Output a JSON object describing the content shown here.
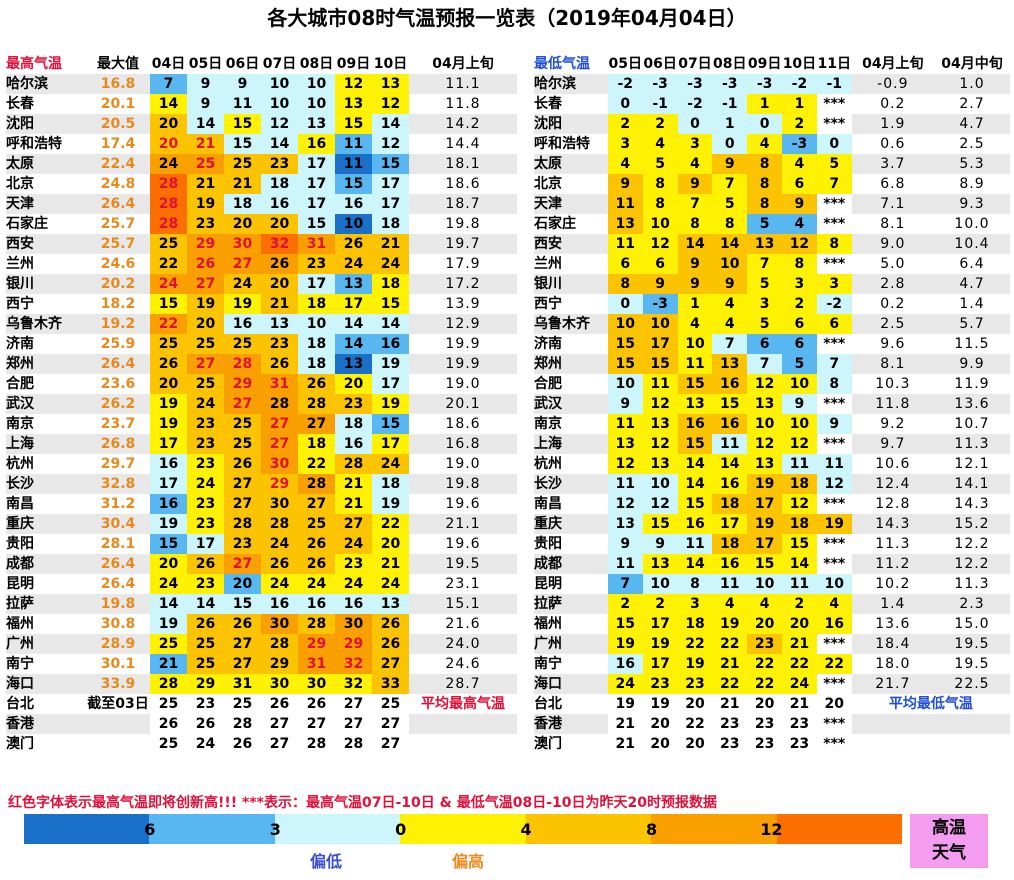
{
  "title": "各大城市08时气温预报一览表（2019年04月04日）",
  "left": {
    "headers": [
      "最高气温",
      "最大值",
      "04日",
      "05日",
      "06日",
      "07日",
      "08日",
      "09日",
      "10日",
      "04月上旬"
    ],
    "rows": [
      {
        "city": "哈尔滨",
        "max": "16.8",
        "vals": [
          "7",
          "9",
          "9",
          "10",
          "10",
          "12",
          "13"
        ],
        "avg": "11.1"
      },
      {
        "city": "长春",
        "max": "20.1",
        "vals": [
          "14",
          "9",
          "11",
          "10",
          "10",
          "13",
          "12"
        ],
        "avg": "11.8"
      },
      {
        "city": "沈阳",
        "max": "20.5",
        "vals": [
          "20",
          "14",
          "15",
          "12",
          "13",
          "15",
          "14"
        ],
        "avg": "14.2"
      },
      {
        "city": "呼和浩特",
        "max": "17.4",
        "vals": [
          "20",
          "21",
          "15",
          "14",
          "16",
          "11",
          "12"
        ],
        "avg": "14.4"
      },
      {
        "city": "太原",
        "max": "22.4",
        "vals": [
          "24",
          "25",
          "25",
          "23",
          "17",
          "11",
          "15"
        ],
        "avg": "18.1"
      },
      {
        "city": "北京",
        "max": "24.8",
        "vals": [
          "28",
          "21",
          "21",
          "18",
          "17",
          "15",
          "17"
        ],
        "avg": "18.6"
      },
      {
        "city": "天津",
        "max": "26.4",
        "vals": [
          "28",
          "19",
          "18",
          "16",
          "17",
          "16",
          "17"
        ],
        "avg": "18.7"
      },
      {
        "city": "石家庄",
        "max": "25.7",
        "vals": [
          "28",
          "23",
          "20",
          "20",
          "15",
          "10",
          "18"
        ],
        "avg": "19.8"
      },
      {
        "city": "西安",
        "max": "25.7",
        "vals": [
          "25",
          "29",
          "30",
          "32",
          "31",
          "26",
          "21"
        ],
        "avg": "19.7"
      },
      {
        "city": "兰州",
        "max": "24.6",
        "vals": [
          "22",
          "26",
          "27",
          "26",
          "23",
          "24",
          "24"
        ],
        "avg": "17.9"
      },
      {
        "city": "银川",
        "max": "20.2",
        "vals": [
          "24",
          "27",
          "24",
          "20",
          "17",
          "13",
          "18"
        ],
        "avg": "17.2"
      },
      {
        "city": "西宁",
        "max": "18.2",
        "vals": [
          "15",
          "19",
          "19",
          "21",
          "18",
          "17",
          "15"
        ],
        "avg": "13.9"
      },
      {
        "city": "乌鲁木齐",
        "max": "19.2",
        "vals": [
          "22",
          "20",
          "16",
          "13",
          "10",
          "14",
          "14"
        ],
        "avg": "12.9"
      },
      {
        "city": "济南",
        "max": "25.9",
        "vals": [
          "25",
          "25",
          "25",
          "23",
          "18",
          "14",
          "16"
        ],
        "avg": "19.9"
      },
      {
        "city": "郑州",
        "max": "26.4",
        "vals": [
          "26",
          "27",
          "28",
          "26",
          "18",
          "13",
          "19"
        ],
        "avg": "19.9"
      },
      {
        "city": "合肥",
        "max": "23.6",
        "vals": [
          "20",
          "25",
          "29",
          "31",
          "26",
          "20",
          "17"
        ],
        "avg": "19.0"
      },
      {
        "city": "武汉",
        "max": "26.2",
        "vals": [
          "19",
          "24",
          "27",
          "28",
          "28",
          "23",
          "19"
        ],
        "avg": "20.1"
      },
      {
        "city": "南京",
        "max": "23.7",
        "vals": [
          "19",
          "23",
          "25",
          "27",
          "27",
          "18",
          "15"
        ],
        "avg": "18.6"
      },
      {
        "city": "上海",
        "max": "26.8",
        "vals": [
          "17",
          "23",
          "25",
          "27",
          "18",
          "16",
          "17"
        ],
        "avg": "16.8"
      },
      {
        "city": "杭州",
        "max": "29.7",
        "vals": [
          "16",
          "23",
          "26",
          "30",
          "22",
          "28",
          "24"
        ],
        "avg": "19.0"
      },
      {
        "city": "长沙",
        "max": "32.8",
        "vals": [
          "17",
          "24",
          "27",
          "29",
          "28",
          "21",
          "18"
        ],
        "avg": "19.8"
      },
      {
        "city": "南昌",
        "max": "31.2",
        "vals": [
          "16",
          "23",
          "27",
          "30",
          "27",
          "21",
          "19"
        ],
        "avg": "19.6"
      },
      {
        "city": "重庆",
        "max": "30.4",
        "vals": [
          "19",
          "23",
          "28",
          "28",
          "25",
          "27",
          "22"
        ],
        "avg": "21.1"
      },
      {
        "city": "贵阳",
        "max": "28.1",
        "vals": [
          "15",
          "17",
          "23",
          "24",
          "26",
          "24",
          "20"
        ],
        "avg": "19.6"
      },
      {
        "city": "成都",
        "max": "26.4",
        "vals": [
          "20",
          "26",
          "27",
          "26",
          "26",
          "23",
          "21"
        ],
        "avg": "19.5"
      },
      {
        "city": "昆明",
        "max": "26.4",
        "vals": [
          "24",
          "23",
          "20",
          "24",
          "24",
          "24",
          "24"
        ],
        "avg": "23.1"
      },
      {
        "city": "拉萨",
        "max": "19.8",
        "vals": [
          "14",
          "14",
          "15",
          "16",
          "16",
          "16",
          "13"
        ],
        "avg": "15.1"
      },
      {
        "city": "福州",
        "max": "30.8",
        "vals": [
          "19",
          "26",
          "26",
          "30",
          "28",
          "30",
          "26"
        ],
        "avg": "21.6"
      },
      {
        "city": "广州",
        "max": "28.9",
        "vals": [
          "25",
          "25",
          "27",
          "28",
          "29",
          "29",
          "26"
        ],
        "avg": "24.0"
      },
      {
        "city": "南宁",
        "max": "30.1",
        "vals": [
          "21",
          "25",
          "27",
          "29",
          "31",
          "32",
          "27"
        ],
        "avg": "24.6"
      },
      {
        "city": "海口",
        "max": "33.9",
        "vals": [
          "28",
          "29",
          "31",
          "30",
          "30",
          "32",
          "33"
        ],
        "avg": "28.7"
      },
      {
        "city": "台北",
        "max": "截至03日",
        "vals": [
          "25",
          "23",
          "25",
          "26",
          "26",
          "27",
          "25"
        ],
        "avg": ""
      },
      {
        "city": "香港",
        "max": "",
        "vals": [
          "26",
          "26",
          "28",
          "27",
          "27",
          "27",
          "27"
        ],
        "avg": ""
      },
      {
        "city": "澳门",
        "max": "",
        "vals": [
          "25",
          "24",
          "26",
          "27",
          "28",
          "28",
          "27"
        ],
        "avg": ""
      }
    ],
    "note": "平均最高气温"
  },
  "right": {
    "headers": [
      "最低气温",
      "05日",
      "06日",
      "07日",
      "08日",
      "09日",
      "10日",
      "11日",
      "04月上旬",
      "04月中旬"
    ],
    "rows": [
      {
        "city": "哈尔滨",
        "vals": [
          "-2",
          "-3",
          "-3",
          "-3",
          "-3",
          "-2",
          "-1"
        ],
        "p1": "-0.9",
        "p2": "1.0"
      },
      {
        "city": "长春",
        "vals": [
          "0",
          "-1",
          "-2",
          "-1",
          "1",
          "1",
          "***"
        ],
        "p1": "0.2",
        "p2": "2.7"
      },
      {
        "city": "沈阳",
        "vals": [
          "2",
          "2",
          "0",
          "1",
          "0",
          "2",
          "***"
        ],
        "p1": "1.9",
        "p2": "4.7"
      },
      {
        "city": "呼和浩特",
        "vals": [
          "3",
          "4",
          "3",
          "0",
          "4",
          "-3",
          "0"
        ],
        "p1": "0.6",
        "p2": "2.5"
      },
      {
        "city": "太原",
        "vals": [
          "4",
          "5",
          "4",
          "9",
          "8",
          "4",
          "5"
        ],
        "p1": "3.7",
        "p2": "5.3"
      },
      {
        "city": "北京",
        "vals": [
          "9",
          "8",
          "9",
          "7",
          "8",
          "6",
          "7"
        ],
        "p1": "6.8",
        "p2": "8.9"
      },
      {
        "city": "天津",
        "vals": [
          "11",
          "8",
          "7",
          "5",
          "8",
          "9",
          "***"
        ],
        "p1": "7.1",
        "p2": "9.3"
      },
      {
        "city": "石家庄",
        "vals": [
          "13",
          "10",
          "8",
          "8",
          "5",
          "4",
          "***"
        ],
        "p1": "8.1",
        "p2": "10.0"
      },
      {
        "city": "西安",
        "vals": [
          "11",
          "12",
          "14",
          "14",
          "13",
          "12",
          "8"
        ],
        "p1": "9.0",
        "p2": "10.4"
      },
      {
        "city": "兰州",
        "vals": [
          "6",
          "6",
          "9",
          "10",
          "7",
          "8",
          "***"
        ],
        "p1": "5.0",
        "p2": "6.4"
      },
      {
        "city": "银川",
        "vals": [
          "8",
          "9",
          "9",
          "9",
          "5",
          "3",
          "3"
        ],
        "p1": "2.8",
        "p2": "4.7"
      },
      {
        "city": "西宁",
        "vals": [
          "0",
          "-3",
          "1",
          "4",
          "3",
          "2",
          "-2"
        ],
        "p1": "0.2",
        "p2": "1.4"
      },
      {
        "city": "乌鲁木齐",
        "vals": [
          "10",
          "10",
          "4",
          "4",
          "5",
          "6",
          "6"
        ],
        "p1": "2.5",
        "p2": "5.7"
      },
      {
        "city": "济南",
        "vals": [
          "15",
          "17",
          "10",
          "7",
          "6",
          "6",
          "***"
        ],
        "p1": "9.6",
        "p2": "11.5"
      },
      {
        "city": "郑州",
        "vals": [
          "15",
          "15",
          "11",
          "13",
          "7",
          "5",
          "7"
        ],
        "p1": "8.1",
        "p2": "9.9"
      },
      {
        "city": "合肥",
        "vals": [
          "10",
          "11",
          "15",
          "16",
          "12",
          "10",
          "8"
        ],
        "p1": "10.3",
        "p2": "11.9"
      },
      {
        "city": "武汉",
        "vals": [
          "9",
          "12",
          "13",
          "15",
          "13",
          "9",
          "***"
        ],
        "p1": "11.8",
        "p2": "13.6"
      },
      {
        "city": "南京",
        "vals": [
          "11",
          "13",
          "16",
          "16",
          "10",
          "10",
          "9"
        ],
        "p1": "9.2",
        "p2": "10.7"
      },
      {
        "city": "上海",
        "vals": [
          "13",
          "12",
          "15",
          "11",
          "12",
          "12",
          "***"
        ],
        "p1": "9.7",
        "p2": "11.3"
      },
      {
        "city": "杭州",
        "vals": [
          "12",
          "13",
          "14",
          "14",
          "13",
          "11",
          "11"
        ],
        "p1": "10.6",
        "p2": "12.1"
      },
      {
        "city": "长沙",
        "vals": [
          "11",
          "10",
          "14",
          "16",
          "19",
          "18",
          "12"
        ],
        "p1": "12.4",
        "p2": "14.1"
      },
      {
        "city": "南昌",
        "vals": [
          "12",
          "12",
          "15",
          "18",
          "17",
          "12",
          "***"
        ],
        "p1": "12.8",
        "p2": "14.3"
      },
      {
        "city": "重庆",
        "vals": [
          "13",
          "15",
          "16",
          "17",
          "19",
          "18",
          "19"
        ],
        "p1": "14.3",
        "p2": "15.2"
      },
      {
        "city": "贵阳",
        "vals": [
          "9",
          "9",
          "11",
          "18",
          "17",
          "15",
          "***"
        ],
        "p1": "11.3",
        "p2": "12.2"
      },
      {
        "city": "成都",
        "vals": [
          "11",
          "13",
          "14",
          "16",
          "15",
          "14",
          "***"
        ],
        "p1": "11.2",
        "p2": "12.2"
      },
      {
        "city": "昆明",
        "vals": [
          "7",
          "10",
          "8",
          "11",
          "10",
          "11",
          "10"
        ],
        "p1": "10.2",
        "p2": "11.3"
      },
      {
        "city": "拉萨",
        "vals": [
          "2",
          "2",
          "3",
          "4",
          "4",
          "2",
          "4"
        ],
        "p1": "1.4",
        "p2": "2.3"
      },
      {
        "city": "福州",
        "vals": [
          "15",
          "17",
          "18",
          "19",
          "20",
          "20",
          "16"
        ],
        "p1": "13.6",
        "p2": "15.0"
      },
      {
        "city": "广州",
        "vals": [
          "19",
          "19",
          "22",
          "22",
          "23",
          "21",
          "***"
        ],
        "p1": "18.4",
        "p2": "19.5"
      },
      {
        "city": "南宁",
        "vals": [
          "16",
          "17",
          "19",
          "21",
          "22",
          "22",
          "22"
        ],
        "p1": "18.0",
        "p2": "19.5"
      },
      {
        "city": "海口",
        "vals": [
          "24",
          "23",
          "23",
          "22",
          "22",
          "24",
          "***"
        ],
        "p1": "21.7",
        "p2": "22.5"
      },
      {
        "city": "台北",
        "vals": [
          "19",
          "19",
          "20",
          "21",
          "20",
          "21",
          "20"
        ],
        "p1": "",
        "p2": ""
      },
      {
        "city": "香港",
        "vals": [
          "21",
          "20",
          "22",
          "23",
          "23",
          "23",
          "***"
        ],
        "p1": "",
        "p2": ""
      },
      {
        "city": "澳门",
        "vals": [
          "21",
          "20",
          "20",
          "23",
          "23",
          "23",
          "***"
        ],
        "p1": "",
        "p2": ""
      }
    ],
    "note": "平均最低气温"
  },
  "footnote": "红色字体表示最高气温即将创新高!!!  ***表示：最高气温07日-10日 & 最低气温08日-10日为昨天20时预报数据",
  "legend": {
    "ticks": [
      "6",
      "3",
      "0",
      "4",
      "8",
      "12"
    ],
    "colors": [
      "#1a6fc9",
      "#58b6f0",
      "#ccf6fb",
      "#fff200",
      "#fcc400",
      "#f9a000",
      "#fb6e00"
    ],
    "low_label": "偏低",
    "high_label": "偏高",
    "hot_line1": "高温",
    "hot_line2": "天气"
  },
  "cell_colors": {
    "deep_blue": "#1a6fc9",
    "blue": "#58b6f0",
    "light_cyan": "#ccf6fb",
    "yellow": "#fff200",
    "gold": "#fcc400",
    "orange": "#f9a000",
    "dark_orange": "#fb6e00"
  }
}
